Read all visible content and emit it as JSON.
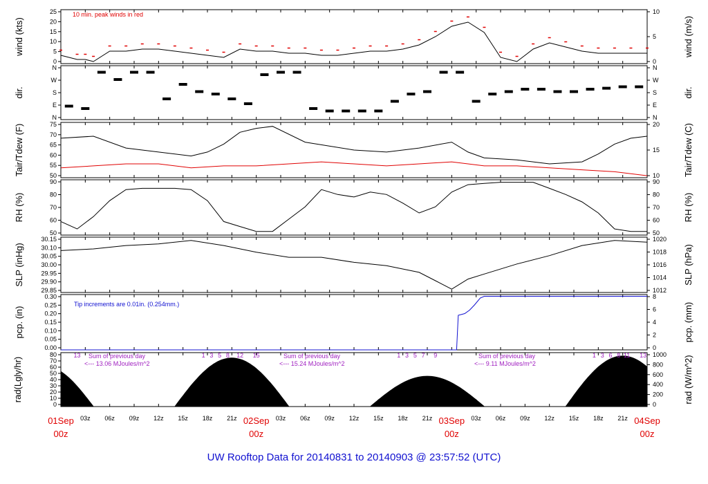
{
  "title": "UW Rooftop Data for 20140831  to  20140903 @ 23:57:52  (UTC)",
  "colors": {
    "red": "#e00000",
    "blue": "#1010d0",
    "purple": "#a020c0",
    "black": "#000000"
  },
  "x_axis": {
    "minor_ticks": [
      "03z",
      "06z",
      "09z",
      "12z",
      "15z",
      "18z",
      "21z",
      "03z",
      "06z",
      "09z",
      "12z",
      "15z",
      "18z",
      "21z",
      "03z",
      "06z",
      "09z",
      "12z",
      "15z",
      "18z",
      "21z"
    ],
    "day_labels": [
      {
        "date": "01Sep",
        "time": "00z"
      },
      {
        "date": "02Sep",
        "time": "00z"
      },
      {
        "date": "03Sep",
        "time": "00z"
      },
      {
        "date": "04Sep",
        "time": "00z"
      }
    ]
  },
  "chart_data": [
    {
      "type": "line",
      "id": "wind",
      "ylabel": "wind (kts)",
      "ylabel_right": "wind (m/s)",
      "ylim": [
        0,
        26
      ],
      "yticks": [
        "0",
        "5",
        "10",
        "15",
        "20",
        "25"
      ],
      "yticks_right": [
        "0",
        "5",
        "10"
      ],
      "annotation": "10 min. peak winds in red",
      "series": [
        {
          "x": [
            0,
            2,
            3,
            4,
            6,
            8,
            10,
            12,
            14,
            16,
            18,
            20,
            22,
            24,
            26,
            28,
            30,
            32,
            34,
            36,
            38,
            40,
            42,
            44,
            46,
            48,
            50,
            52,
            54,
            56,
            58,
            60,
            62,
            64,
            66,
            68,
            70,
            72
          ],
          "values": [
            4,
            2,
            2,
            1,
            6,
            6,
            7,
            7,
            6,
            5,
            4,
            3,
            7,
            6,
            6,
            5,
            5,
            4,
            4,
            5,
            6,
            6,
            7,
            9,
            13,
            18,
            20,
            15,
            3,
            1,
            7,
            10,
            8,
            6,
            5,
            5,
            5,
            5
          ]
        }
      ]
    },
    {
      "type": "scatter",
      "id": "dir",
      "ylabel": "dir.",
      "ylabel_right": "dir.",
      "yticks": [
        "N",
        "E",
        "S",
        "W",
        "N"
      ],
      "yticks_right": [
        "N",
        "E",
        "S",
        "W",
        "N"
      ]
    },
    {
      "type": "line",
      "id": "temp",
      "ylabel": "Tair/Tdew (F)",
      "ylabel_right": "Tair/Tdew (C)",
      "ylim": [
        48,
        76
      ],
      "yticks": [
        "50",
        "55",
        "60",
        "65",
        "70",
        "75"
      ],
      "yticks_right": [
        "10",
        "15",
        "20"
      ],
      "series": [
        {
          "name": "Tair",
          "x": [
            0,
            4,
            8,
            12,
            16,
            18,
            20,
            22,
            24,
            26,
            30,
            36,
            40,
            44,
            48,
            50,
            52,
            56,
            60,
            64,
            66,
            68,
            70,
            72
          ],
          "values": [
            68,
            69,
            63,
            61,
            59,
            61,
            65,
            71,
            73,
            74,
            66,
            62,
            61,
            63,
            66,
            61,
            58,
            57,
            55,
            56,
            60,
            65,
            68,
            69
          ]
        },
        {
          "name": "Tdew",
          "x": [
            0,
            4,
            8,
            12,
            16,
            20,
            24,
            28,
            32,
            36,
            40,
            44,
            48,
            52,
            56,
            60,
            64,
            68,
            72
          ],
          "values": [
            53,
            54,
            55,
            55,
            53,
            54,
            54,
            55,
            56,
            55,
            54,
            55,
            56,
            54,
            54,
            53,
            52,
            51,
            49
          ]
        }
      ]
    },
    {
      "type": "line",
      "id": "rh",
      "ylabel": "RH (%)",
      "ylabel_right": "RH (%)",
      "ylim": [
        47,
        92
      ],
      "yticks": [
        "50",
        "60",
        "70",
        "80",
        "90"
      ],
      "yticks_right": [
        "50",
        "60",
        "70",
        "80",
        "90"
      ],
      "series": [
        {
          "x": [
            0,
            2,
            4,
            6,
            8,
            10,
            12,
            14,
            16,
            18,
            20,
            22,
            24,
            26,
            28,
            30,
            32,
            34,
            36,
            38,
            40,
            42,
            44,
            46,
            48,
            50,
            52,
            54,
            56,
            58,
            60,
            62,
            64,
            66,
            68,
            70,
            72
          ],
          "values": [
            58,
            52,
            62,
            75,
            84,
            85,
            85,
            85,
            84,
            75,
            58,
            54,
            50,
            50,
            60,
            70,
            84,
            80,
            78,
            82,
            80,
            73,
            65,
            70,
            82,
            88,
            89,
            90,
            90,
            90,
            85,
            80,
            74,
            65,
            52,
            50,
            50
          ]
        }
      ]
    },
    {
      "type": "line",
      "id": "slp",
      "ylabel": "SLP (inHg)",
      "ylabel_right": "SLP (hPa)",
      "ylim": [
        29.84,
        30.17
      ],
      "yticks": [
        "29.85",
        "29.90",
        "29.95",
        "30.00",
        "30.05",
        "30.10",
        "30.15"
      ],
      "yticks_right": [
        "1012",
        "1014",
        "1016",
        "1018",
        "1020"
      ],
      "series": [
        {
          "x": [
            0,
            4,
            8,
            12,
            16,
            20,
            24,
            28,
            32,
            36,
            40,
            44,
            46,
            48,
            50,
            52,
            56,
            60,
            64,
            68,
            72
          ],
          "values": [
            30.09,
            30.1,
            30.12,
            30.13,
            30.15,
            30.12,
            30.08,
            30.05,
            30.05,
            30.02,
            30.0,
            29.96,
            29.91,
            29.86,
            29.92,
            29.95,
            30.01,
            30.06,
            30.12,
            30.15,
            30.14
          ]
        }
      ]
    },
    {
      "type": "line",
      "id": "pcp",
      "ylabel": "pcp. (in)",
      "ylabel_right": "pcp. (mm)",
      "ylim": [
        0,
        0.32
      ],
      "yticks": [
        "0.00",
        "0.05",
        "0.10",
        "0.15",
        "0.20",
        "0.25",
        "0.30"
      ],
      "yticks_right": [
        "0",
        "2",
        "4",
        "6",
        "8"
      ],
      "annotation": "Tip increments are 0.01in. (0.254mm.)",
      "series": [
        {
          "x": [
            0,
            48.6,
            48.8,
            49.6,
            50.2,
            50.8,
            51.5,
            52.0,
            72
          ],
          "values": [
            0,
            0,
            0.2,
            0.21,
            0.23,
            0.26,
            0.3,
            0.31,
            0.31
          ]
        }
      ]
    },
    {
      "type": "area",
      "id": "rad",
      "ylabel": "rad(Lgly/hr)",
      "ylabel_right": "rad (W/m^2)",
      "ylim": [
        0,
        80
      ],
      "yticks": [
        "0",
        "10",
        "20",
        "30",
        "40",
        "50",
        "60",
        "70",
        "80"
      ],
      "yticks_right": [
        "0",
        "200",
        "400",
        "600",
        "800",
        "1000"
      ],
      "hour_labels": [
        "13",
        "1",
        "3",
        "5",
        "8",
        "12",
        "15",
        "1",
        "3",
        "5",
        "7",
        "9",
        "1",
        "3",
        "6",
        "8",
        "11",
        "13"
      ],
      "daily_summaries": [
        {
          "line1": "Sum of previous day",
          "line2": "<--- 13.06 MJoules/m^2"
        },
        {
          "line1": "Sum of previous day",
          "line2": "<--- 15.24 MJoules/m^2"
        },
        {
          "line1": "Sum of previous day",
          "line2": "<--- 9.11 MJoules/m^2"
        }
      ]
    }
  ]
}
